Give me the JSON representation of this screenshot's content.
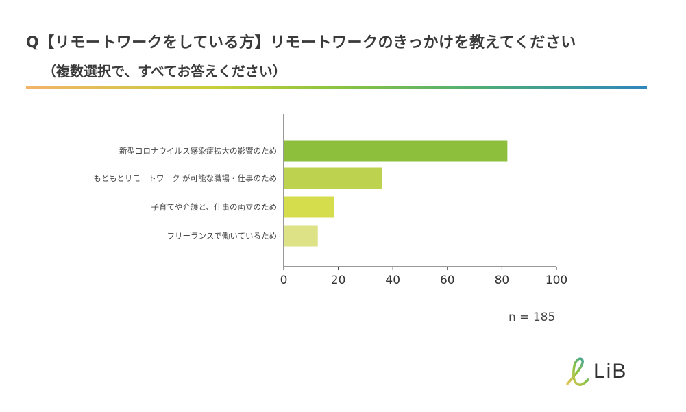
{
  "header": {
    "title": "Q【リモートワークをしている方】リモートワークのきっかけを教えてください",
    "subtitle": "（複数選択で、すべてお答えください）"
  },
  "colors": {
    "rule_gradient": [
      "#f2b36a",
      "#c7cf3a",
      "#8bc43f",
      "#4bab7a",
      "#2f86bd"
    ],
    "bars": [
      "#8dbf3d",
      "#bdd350",
      "#d6dd4c",
      "#dde287"
    ]
  },
  "sample_size": "n = 185",
  "logo": {
    "text": "LiB",
    "icon": "script-l-logo-icon"
  },
  "chart_data": {
    "type": "bar",
    "orientation": "horizontal",
    "categories": [
      "新型コロナウイルス感染症拡大の影響のため",
      "もともとリモートワーク が可能な職場・仕事のため",
      "子育てや介護と、仕事の両立のため",
      "フリーランスで働いているため"
    ],
    "values": [
      82,
      36,
      18.5,
      12.5
    ],
    "xlim": [
      0,
      100
    ],
    "xticks": [
      "0",
      "20",
      "40",
      "60",
      "80",
      "100"
    ],
    "grid": false,
    "legend": "none"
  }
}
